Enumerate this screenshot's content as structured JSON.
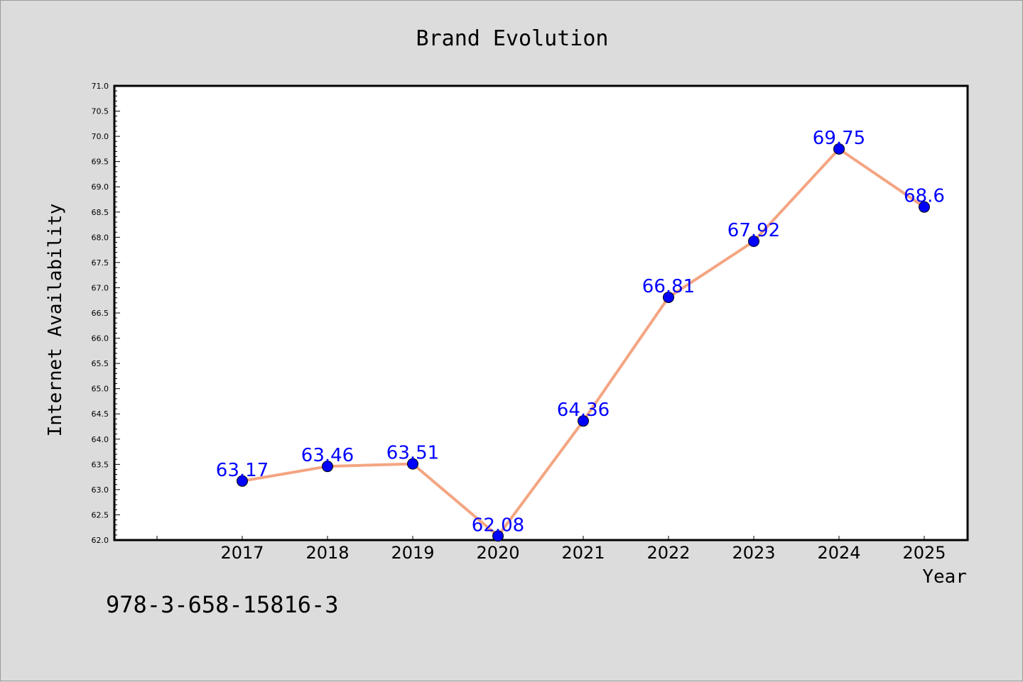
{
  "chart_data": {
    "type": "line",
    "title": "Brand Evolution",
    "xlabel": "Year",
    "ylabel": "Internet Availability",
    "categories": [
      "2017",
      "2018",
      "2019",
      "2020",
      "2021",
      "2022",
      "2023",
      "2024",
      "2025"
    ],
    "series": [
      {
        "values": [
          63.17,
          63.46,
          63.51,
          62.08,
          64.36,
          66.81,
          67.92,
          69.75,
          68.6
        ]
      }
    ],
    "data_labels": [
      "63.17",
      "63.46",
      "63.51",
      "62.08",
      "64.36",
      "66.81",
      "67.92",
      "69.75",
      "68.6"
    ],
    "ylim": [
      62.0,
      71.0
    ],
    "yticks": [
      "62.0",
      "62.5",
      "63.0",
      "63.5",
      "64.0",
      "64.5",
      "65.0",
      "65.5",
      "66.0",
      "66.5",
      "67.0",
      "67.5",
      "68.0",
      "68.5",
      "69.0",
      "69.5",
      "70.0",
      "70.5",
      "71.0"
    ],
    "grid": false,
    "line_color": "#f4a582",
    "marker_color": "#0000ff",
    "label_color": "#0000ff"
  },
  "footer": {
    "code": "978-3-658-15816-3"
  }
}
